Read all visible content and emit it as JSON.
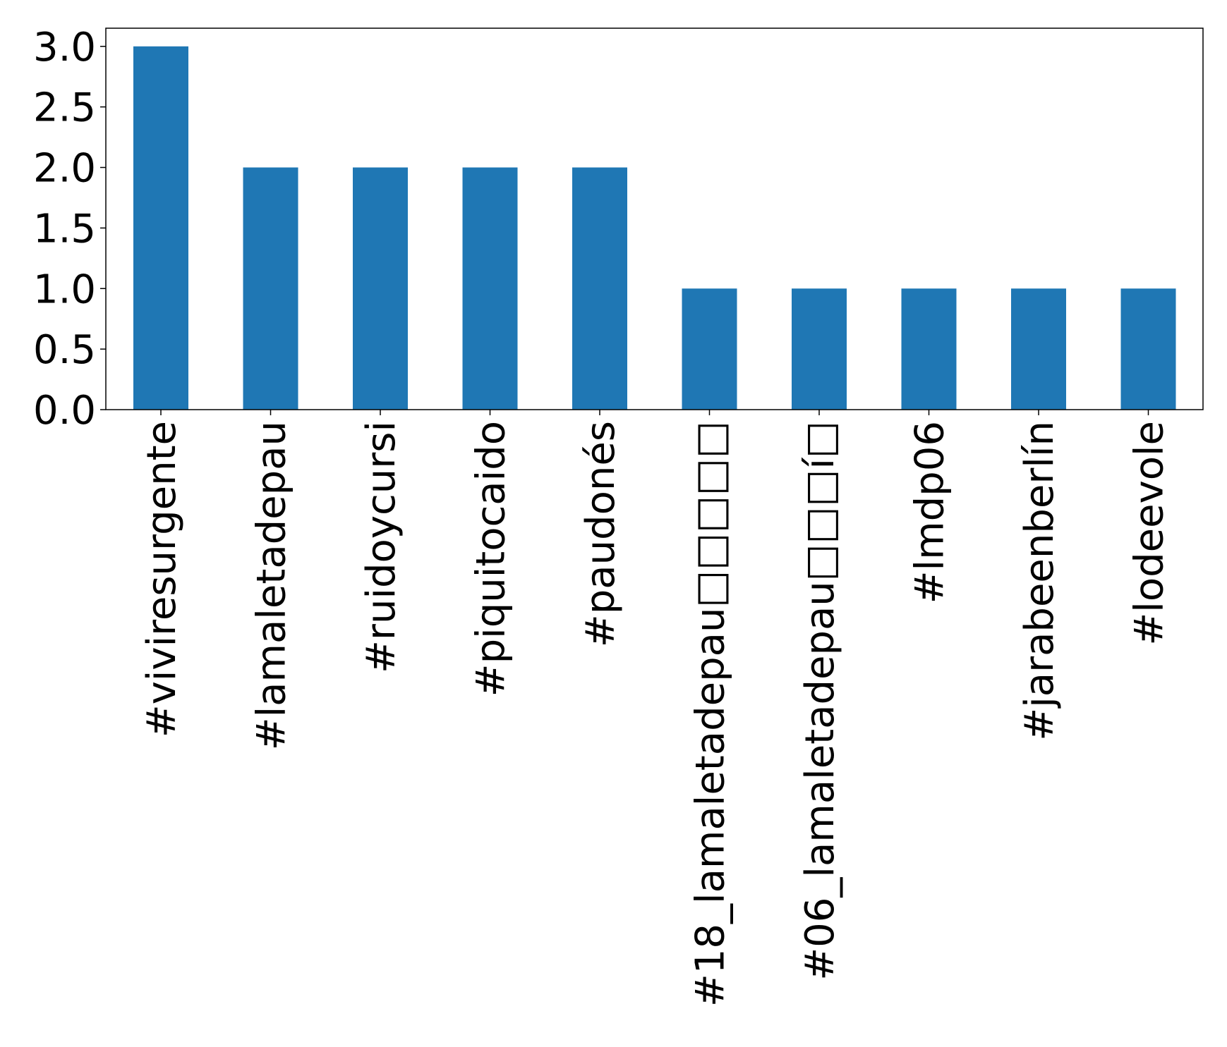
{
  "chart_data": {
    "type": "bar",
    "categories": [
      "#viviresurgente",
      "#lamaletadepau",
      "#ruidoycursi",
      "#piquitocaido",
      "#paudonés",
      "#18_lamaletadepau□□□□□",
      "#06_lamaletadepau□□□í□",
      "#lmdp06",
      "#jarabeenberlín",
      "#lodeevole"
    ],
    "values": [
      3,
      2,
      2,
      2,
      2,
      1,
      1,
      1,
      1,
      1
    ],
    "ylim": [
      0,
      3.15
    ],
    "yticks": [
      "0.0",
      "0.5",
      "1.0",
      "1.5",
      "2.0",
      "2.5",
      "3.0"
    ],
    "title": "",
    "xlabel": "",
    "ylabel": "",
    "grid": false,
    "bar_color": "#1f77b4"
  }
}
